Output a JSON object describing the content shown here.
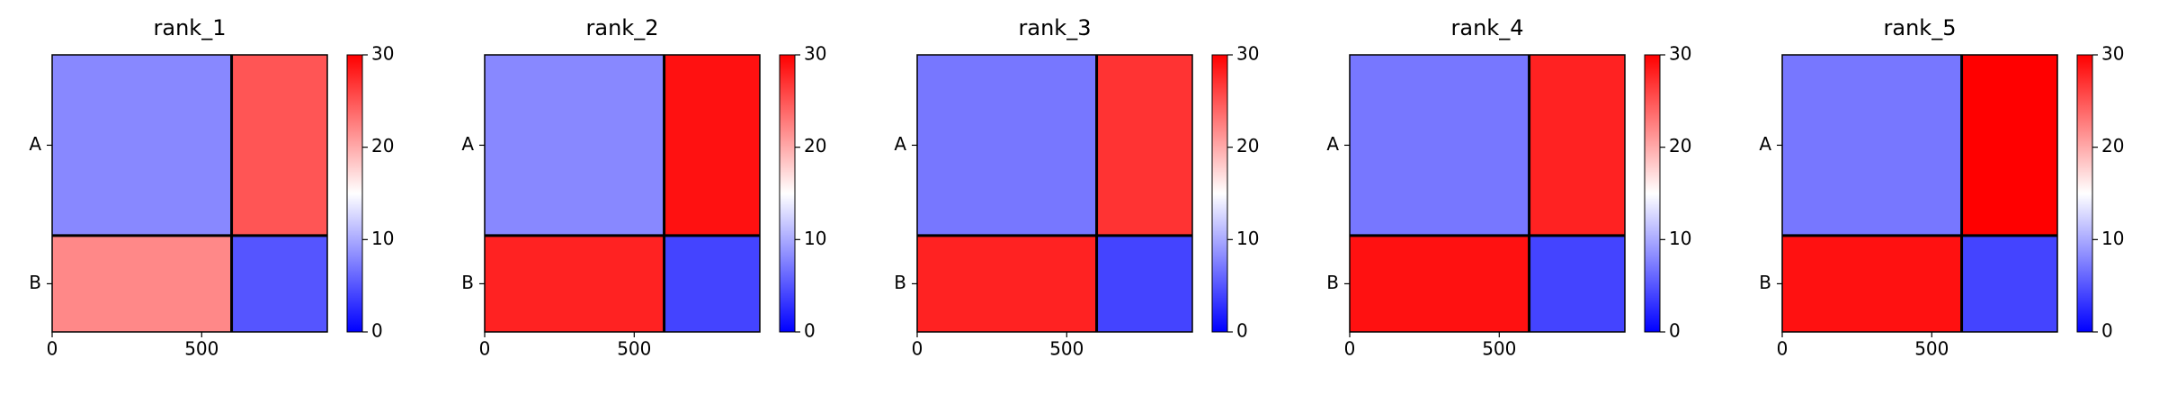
{
  "chart_data": [
    {
      "type": "heatmap",
      "title": "rank_1",
      "edges": [
        0,
        600,
        920
      ],
      "values": [
        [
          8,
          25
        ],
        [
          22,
          5
        ]
      ],
      "xlim": [
        0,
        920
      ],
      "xticks": [
        0,
        500
      ],
      "ylim": [
        920,
        0
      ],
      "yticks": [
        {
          "value": 300,
          "label": "A"
        },
        {
          "value": 760,
          "label": "B"
        }
      ],
      "clim": [
        0,
        30
      ],
      "cticks": [
        0,
        10,
        20,
        30
      ],
      "colors": [
        "#0000ff",
        "#ffffff",
        "#ff0000"
      ]
    },
    {
      "type": "heatmap",
      "title": "rank_2",
      "edges": [
        0,
        600,
        920
      ],
      "values": [
        [
          8,
          29
        ],
        [
          28,
          4
        ]
      ],
      "xlim": [
        0,
        920
      ],
      "xticks": [
        0,
        500
      ],
      "ylim": [
        920,
        0
      ],
      "yticks": [
        {
          "value": 300,
          "label": "A"
        },
        {
          "value": 760,
          "label": "B"
        }
      ],
      "clim": [
        0,
        30
      ],
      "cticks": [
        0,
        10,
        20,
        30
      ],
      "colors": [
        "#0000ff",
        "#ffffff",
        "#ff0000"
      ]
    },
    {
      "type": "heatmap",
      "title": "rank_3",
      "edges": [
        0,
        600,
        920
      ],
      "values": [
        [
          7,
          27
        ],
        [
          28,
          4
        ]
      ],
      "xlim": [
        0,
        920
      ],
      "xticks": [
        0,
        500
      ],
      "ylim": [
        920,
        0
      ],
      "yticks": [
        {
          "value": 300,
          "label": "A"
        },
        {
          "value": 760,
          "label": "B"
        }
      ],
      "clim": [
        0,
        30
      ],
      "cticks": [
        0,
        10,
        20,
        30
      ],
      "colors": [
        "#0000ff",
        "#ffffff",
        "#ff0000"
      ]
    },
    {
      "type": "heatmap",
      "title": "rank_4",
      "edges": [
        0,
        600,
        920
      ],
      "values": [
        [
          7,
          28
        ],
        [
          29,
          4
        ]
      ],
      "xlim": [
        0,
        920
      ],
      "xticks": [
        0,
        500
      ],
      "ylim": [
        920,
        0
      ],
      "yticks": [
        {
          "value": 300,
          "label": "A"
        },
        {
          "value": 760,
          "label": "B"
        }
      ],
      "clim": [
        0,
        30
      ],
      "cticks": [
        0,
        10,
        20,
        30
      ],
      "colors": [
        "#0000ff",
        "#ffffff",
        "#ff0000"
      ]
    },
    {
      "type": "heatmap",
      "title": "rank_5",
      "edges": [
        0,
        600,
        920
      ],
      "values": [
        [
          7,
          30
        ],
        [
          29,
          4
        ]
      ],
      "xlim": [
        0,
        920
      ],
      "xticks": [
        0,
        500
      ],
      "ylim": [
        920,
        0
      ],
      "yticks": [
        {
          "value": 300,
          "label": "A"
        },
        {
          "value": 760,
          "label": "B"
        }
      ],
      "clim": [
        0,
        30
      ],
      "cticks": [
        0,
        10,
        20,
        30
      ],
      "colors": [
        "#0000ff",
        "#ffffff",
        "#ff0000"
      ]
    }
  ]
}
